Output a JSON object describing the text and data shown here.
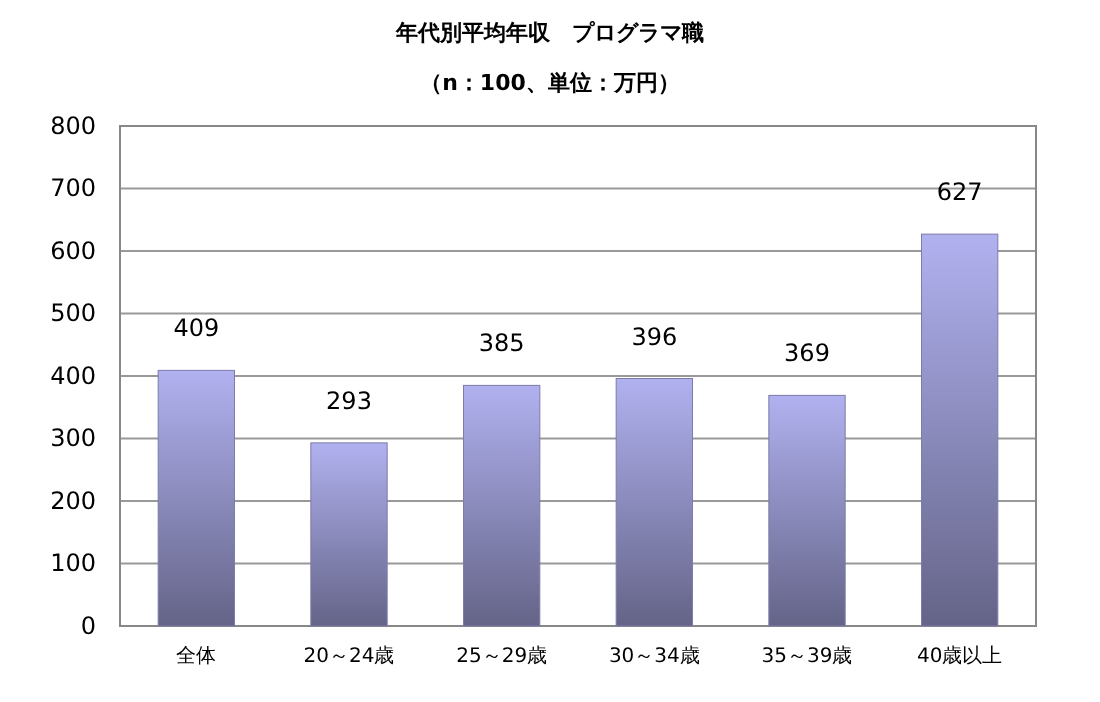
{
  "chart_data": {
    "type": "bar",
    "title": "年代別平均年収　プログラマ職",
    "subtitle": "（n：100、単位：万円）",
    "categories": [
      "全体",
      "20～24歳",
      "25～29歳",
      "30～34歳",
      "35～39歳",
      "40歳以上"
    ],
    "values": [
      409,
      293,
      385,
      396,
      369,
      627
    ],
    "color": "#7c7ca8",
    "ylim": [
      0,
      800
    ],
    "yticks": [
      0,
      100,
      200,
      300,
      400,
      500,
      600,
      700,
      800
    ],
    "grid": "y",
    "data_labels": true
  }
}
